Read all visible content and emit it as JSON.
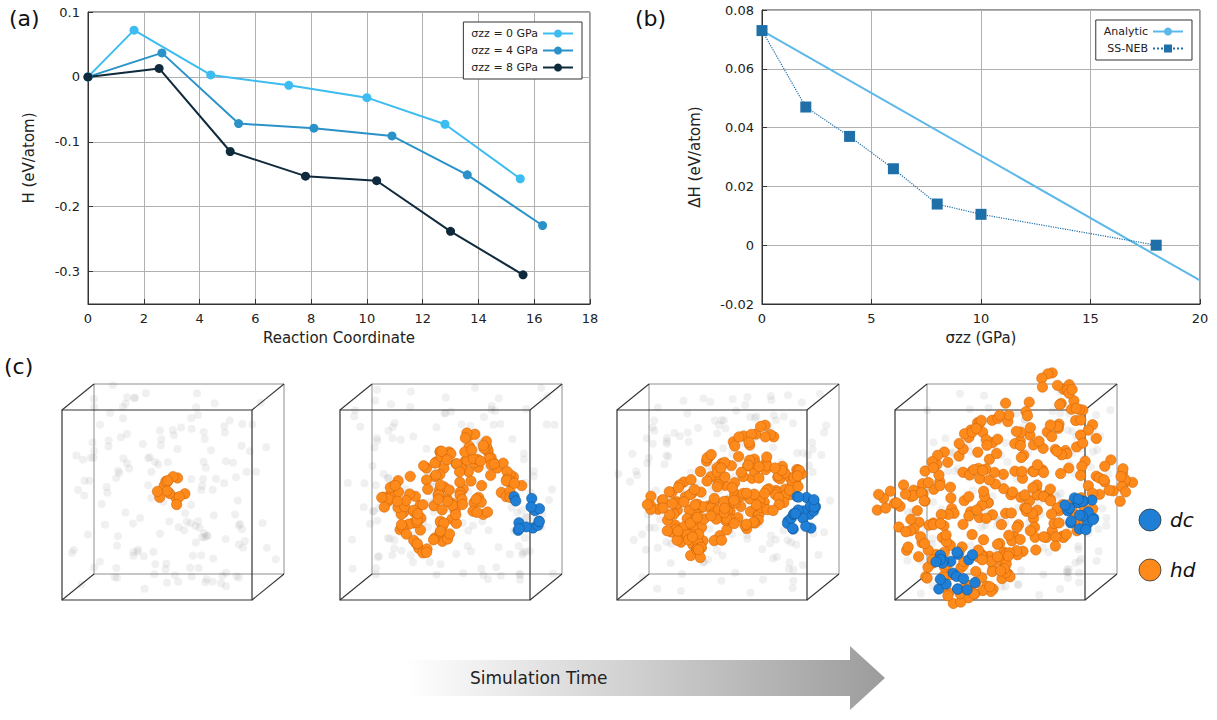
{
  "chart_data": [
    {
      "type": "line",
      "title": "(a)",
      "x_label": "Reaction Coordinate",
      "y_label": "H (eV/atom)",
      "xlim": [
        0,
        18
      ],
      "xticks": [
        0,
        2,
        4,
        6,
        8,
        10,
        12,
        14,
        16,
        18
      ],
      "ylim": [
        -0.35,
        0.1
      ],
      "yticks": [
        0.1,
        0,
        -0.1,
        -0.2,
        -0.3
      ],
      "grid": true,
      "legend": "upper right",
      "series": [
        {
          "name": "σzz = 0 GPa",
          "color": "#3cbcf0",
          "marker": "circle",
          "line_style": "solid",
          "x": [
            0,
            1.65,
            4.4,
            7.2,
            10.0,
            12.8,
            15.5
          ],
          "values": [
            0,
            0.072,
            0.003,
            -0.013,
            -0.032,
            -0.073,
            -0.157
          ]
        },
        {
          "name": "σzz = 4 GPa",
          "color": "#2a92c8",
          "marker": "circle",
          "line_style": "solid",
          "x": [
            0,
            2.65,
            5.4,
            8.1,
            10.9,
            13.6,
            16.3
          ],
          "values": [
            0,
            0.037,
            -0.072,
            -0.079,
            -0.091,
            -0.151,
            -0.229
          ]
        },
        {
          "name": "σzz = 8 GPa",
          "color": "#0f2a3c",
          "marker": "circle",
          "line_style": "solid",
          "x": [
            0,
            2.55,
            5.1,
            7.8,
            10.35,
            13.0,
            15.6
          ],
          "values": [
            0,
            0.013,
            -0.115,
            -0.153,
            -0.16,
            -0.238,
            -0.305
          ]
        }
      ]
    },
    {
      "type": "line",
      "title": "(b)",
      "x_label": "σzz (GPa)",
      "y_label": "ΔH (eV/atom)",
      "xlim": [
        0,
        20
      ],
      "xticks": [
        0,
        5,
        10,
        15,
        20
      ],
      "ylim": [
        -0.02,
        0.08
      ],
      "yticks": [
        -0.02,
        0,
        0.02,
        0.04,
        0.06,
        0.08
      ],
      "grid": true,
      "legend": "upper right",
      "series": [
        {
          "name": "Analytic",
          "color": "#5cb8e8",
          "marker": "none",
          "line_style": "solid",
          "x": [
            0,
            20
          ],
          "values": [
            0.073,
            -0.012
          ]
        },
        {
          "name": "SS-NEB",
          "color": "#1f6fa8",
          "marker": "square",
          "line_style": "dotted",
          "x": [
            0,
            2,
            4,
            6,
            8,
            10,
            18
          ],
          "values": [
            0.073,
            0.047,
            0.037,
            0.026,
            0.014,
            0.0105,
            0.0
          ]
        }
      ]
    }
  ],
  "panel_c": {
    "label": "(c)",
    "arrow_label": "Simulation Time",
    "legend": [
      {
        "name": "dc",
        "color": "#1f7fd6"
      },
      {
        "name": "hd",
        "color": "#ff8a1c"
      }
    ]
  }
}
